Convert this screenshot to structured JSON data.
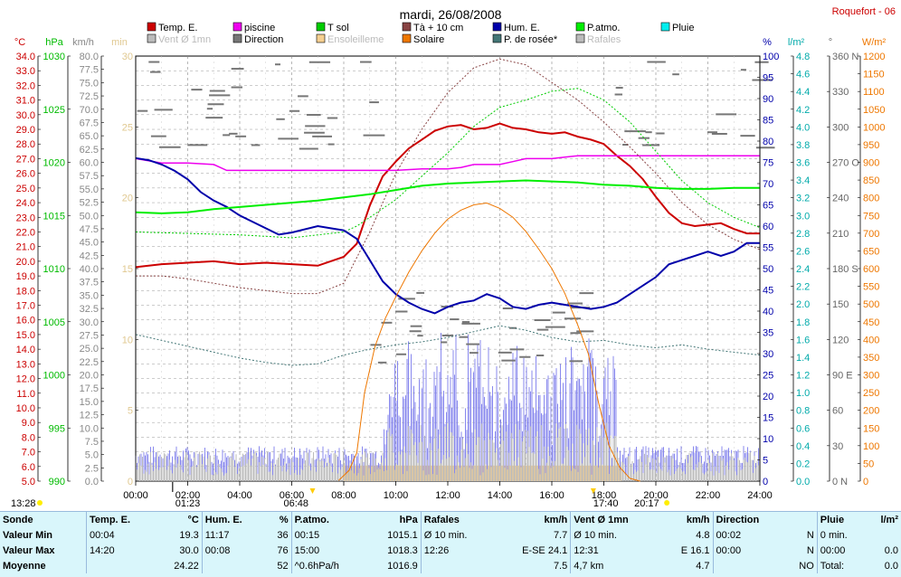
{
  "header": {
    "title": "mardi, 26/08/2008",
    "site": "Roquefort - 06"
  },
  "chart_data": {
    "type": "line",
    "x_range": [
      "00:00",
      "24:00"
    ],
    "x_ticks": [
      "00:00",
      "02:00",
      "04:00",
      "06:00",
      "08:00",
      "10:00",
      "12:00",
      "14:00",
      "16:00",
      "18:00",
      "20:00",
      "22:00",
      "24:00"
    ],
    "grid": true,
    "axes": [
      {
        "id": "temp",
        "unit": "°C",
        "color": "#cc0000",
        "min": 5,
        "max": 34,
        "step": 1,
        "decimals": 1
      },
      {
        "id": "press",
        "unit": "hPa",
        "color": "#00bb00",
        "min": 990,
        "max": 1030,
        "step": 5,
        "decimals": 0
      },
      {
        "id": "wind",
        "unit": "km/h",
        "color": "#888888",
        "min": 0,
        "max": 80,
        "step": 2.5,
        "decimals": 1
      },
      {
        "id": "min",
        "unit": "min",
        "color": "#e0c890",
        "min": 0,
        "max": 30,
        "step": 5,
        "decimals": 0
      },
      {
        "id": "hum",
        "unit": "%",
        "color": "#0000aa",
        "min": 0,
        "max": 100,
        "step": 5,
        "decimals": 0
      },
      {
        "id": "rain",
        "unit": "l/m²",
        "color": "#00aaaa",
        "min": 0,
        "max": 4.8,
        "step": 0.2,
        "decimals": 1
      },
      {
        "id": "dir",
        "unit": "°",
        "color": "#666666",
        "min": 0,
        "max": 360,
        "step": 30,
        "decimals": 0
      },
      {
        "id": "solar",
        "unit": "W/m²",
        "color": "#ee7700",
        "min": 0,
        "max": 1200,
        "step": 50,
        "decimals": 0
      }
    ],
    "dir_labels": {
      "0": "N",
      "90": "E",
      "180": "S",
      "270": "O",
      "360": "N"
    },
    "legend": [
      {
        "label": "Temp. E.",
        "color": "#cc0000"
      },
      {
        "label": "piscine",
        "color": "#ee00ee"
      },
      {
        "label": "T sol",
        "color": "#00cc00"
      },
      {
        "label": "Tà + 10 cm",
        "color": "#884444"
      },
      {
        "label": "Hum. E.",
        "color": "#0000aa"
      },
      {
        "label": "P.atmo.",
        "color": "#00ee00"
      },
      {
        "label": "Pluie",
        "color": "#00eeee"
      },
      {
        "label": "Vent Ø 1mn",
        "color": "#bbbbbb",
        "muted": true
      },
      {
        "label": "Direction",
        "color": "#777777"
      },
      {
        "label": "Ensoleilleme",
        "color": "#f5cf90",
        "muted": true
      },
      {
        "label": "Solaire",
        "color": "#ee7700"
      },
      {
        "label": "P. de rosée*",
        "color": "#447777"
      },
      {
        "label": "Rafales",
        "color": "#bbbbbb",
        "muted": true
      }
    ],
    "series": [
      {
        "name": "Temp. E.",
        "axis": "temp",
        "color": "#cc0000",
        "width": 2,
        "points": [
          [
            0,
            19.6
          ],
          [
            1,
            19.8
          ],
          [
            2,
            19.9
          ],
          [
            3,
            20.0
          ],
          [
            4,
            19.8
          ],
          [
            5,
            19.9
          ],
          [
            6,
            19.8
          ],
          [
            7,
            19.7
          ],
          [
            8,
            20.3
          ],
          [
            8.5,
            21.2
          ],
          [
            9,
            23.8
          ],
          [
            9.5,
            25.8
          ],
          [
            10,
            26.8
          ],
          [
            10.5,
            27.7
          ],
          [
            11,
            28.3
          ],
          [
            11.5,
            28.9
          ],
          [
            12,
            29.2
          ],
          [
            12.5,
            29.3
          ],
          [
            13,
            29.0
          ],
          [
            13.5,
            29.1
          ],
          [
            14,
            29.4
          ],
          [
            14.5,
            29.1
          ],
          [
            15,
            29.0
          ],
          [
            15.5,
            28.8
          ],
          [
            16,
            28.7
          ],
          [
            16.5,
            28.8
          ],
          [
            17,
            28.5
          ],
          [
            17.5,
            28.3
          ],
          [
            18,
            28.0
          ],
          [
            18.5,
            27.2
          ],
          [
            19,
            26.5
          ],
          [
            19.5,
            25.6
          ],
          [
            20,
            24.4
          ],
          [
            20.5,
            23.3
          ],
          [
            21,
            22.6
          ],
          [
            21.5,
            22.4
          ],
          [
            22,
            22.5
          ],
          [
            22.5,
            22.6
          ],
          [
            23,
            22.2
          ],
          [
            23.5,
            21.9
          ],
          [
            24,
            21.9
          ]
        ]
      },
      {
        "name": "piscine",
        "axis": "temp",
        "color": "#ee00ee",
        "width": 1.5,
        "points": [
          [
            0,
            27.0
          ],
          [
            1,
            26.7
          ],
          [
            2,
            26.7
          ],
          [
            3,
            26.6
          ],
          [
            3.5,
            26.2
          ],
          [
            5,
            26.2
          ],
          [
            7,
            26.2
          ],
          [
            8,
            26.2
          ],
          [
            9,
            26.2
          ],
          [
            10,
            26.2
          ],
          [
            11,
            26.3
          ],
          [
            12,
            26.3
          ],
          [
            12.5,
            26.4
          ],
          [
            13,
            26.6
          ],
          [
            14,
            26.6
          ],
          [
            14.5,
            26.8
          ],
          [
            15,
            27.0
          ],
          [
            16,
            27.0
          ],
          [
            16.5,
            27.1
          ],
          [
            17,
            27.2
          ],
          [
            18,
            27.2
          ],
          [
            20,
            27.2
          ],
          [
            22,
            27.2
          ],
          [
            24,
            27.2
          ]
        ]
      },
      {
        "name": "T sol",
        "axis": "temp",
        "color": "#00cc00",
        "width": 1,
        "dash": "2,2",
        "points": [
          [
            0,
            22.0
          ],
          [
            2,
            21.9
          ],
          [
            4,
            21.8
          ],
          [
            5,
            21.7
          ],
          [
            6,
            21.6
          ],
          [
            7,
            21.8
          ],
          [
            8,
            22.0
          ],
          [
            8.5,
            22.4
          ],
          [
            9,
            23.0
          ],
          [
            10,
            24.2
          ],
          [
            11,
            25.8
          ],
          [
            12,
            27.4
          ],
          [
            13,
            29.2
          ],
          [
            14,
            30.5
          ],
          [
            15,
            31.0
          ],
          [
            16,
            31.6
          ],
          [
            17,
            31.8
          ],
          [
            18,
            31.0
          ],
          [
            19,
            29.5
          ],
          [
            20,
            27.5
          ],
          [
            21,
            25.5
          ],
          [
            22,
            24.0
          ],
          [
            23,
            23.0
          ],
          [
            24,
            22.3
          ]
        ]
      },
      {
        "name": "Tà + 10 cm",
        "axis": "temp",
        "color": "#884444",
        "width": 1,
        "dash": "2,2",
        "points": [
          [
            0,
            19.0
          ],
          [
            1,
            19.0
          ],
          [
            2,
            18.8
          ],
          [
            3,
            18.5
          ],
          [
            4,
            18.2
          ],
          [
            5,
            18.0
          ],
          [
            6,
            17.8
          ],
          [
            7,
            17.8
          ],
          [
            8,
            18.5
          ],
          [
            9,
            22.0
          ],
          [
            10,
            26.0
          ],
          [
            11,
            29.0
          ],
          [
            12,
            31.5
          ],
          [
            13,
            33.2
          ],
          [
            14,
            33.8
          ],
          [
            15,
            33.4
          ],
          [
            16,
            32.2
          ],
          [
            17,
            31.0
          ],
          [
            18,
            29.5
          ],
          [
            19,
            27.8
          ],
          [
            20,
            26.0
          ],
          [
            21,
            24.0
          ],
          [
            22,
            22.5
          ],
          [
            23,
            21.5
          ],
          [
            24,
            20.8
          ]
        ]
      },
      {
        "name": "Hum. E.",
        "axis": "hum",
        "color": "#0000aa",
        "width": 2,
        "points": [
          [
            0,
            76
          ],
          [
            0.5,
            75.5
          ],
          [
            1,
            74.5
          ],
          [
            1.5,
            73
          ],
          [
            2,
            71
          ],
          [
            2.5,
            68
          ],
          [
            3,
            66
          ],
          [
            3.5,
            64.5
          ],
          [
            4,
            62.5
          ],
          [
            5,
            59.5
          ],
          [
            5.5,
            58
          ],
          [
            6,
            58.5
          ],
          [
            7,
            60
          ],
          [
            7.5,
            59.5
          ],
          [
            8,
            59
          ],
          [
            8.5,
            57
          ],
          [
            9,
            52
          ],
          [
            9.5,
            47
          ],
          [
            10,
            44
          ],
          [
            10.5,
            42
          ],
          [
            11,
            40.5
          ],
          [
            11.5,
            39.5
          ],
          [
            12,
            41
          ],
          [
            12.5,
            42
          ],
          [
            13,
            42.5
          ],
          [
            13.5,
            44
          ],
          [
            14,
            43
          ],
          [
            14.5,
            41
          ],
          [
            15,
            40.5
          ],
          [
            15.5,
            41.5
          ],
          [
            16,
            42
          ],
          [
            16.5,
            41.5
          ],
          [
            17,
            41
          ],
          [
            17.5,
            40.5
          ],
          [
            18,
            41
          ],
          [
            18.5,
            42
          ],
          [
            19,
            44
          ],
          [
            19.5,
            46
          ],
          [
            20,
            48
          ],
          [
            20.5,
            51
          ],
          [
            21,
            52
          ],
          [
            21.5,
            53
          ],
          [
            22,
            54
          ],
          [
            22.5,
            53
          ],
          [
            23,
            54
          ],
          [
            23.5,
            56
          ],
          [
            24,
            56
          ]
        ]
      },
      {
        "name": "P.atmo.",
        "axis": "press",
        "color": "#00ee00",
        "width": 2,
        "points": [
          [
            0,
            1015.3
          ],
          [
            1,
            1015.2
          ],
          [
            2,
            1015.3
          ],
          [
            3,
            1015.6
          ],
          [
            4,
            1015.8
          ],
          [
            5,
            1016.0
          ],
          [
            6,
            1016.2
          ],
          [
            7,
            1016.4
          ],
          [
            8,
            1016.7
          ],
          [
            9,
            1017.0
          ],
          [
            10,
            1017.4
          ],
          [
            11,
            1017.8
          ],
          [
            12,
            1018.0
          ],
          [
            13,
            1018.1
          ],
          [
            14,
            1018.2
          ],
          [
            15,
            1018.3
          ],
          [
            16,
            1018.2
          ],
          [
            17,
            1018.1
          ],
          [
            18,
            1017.9
          ],
          [
            19,
            1017.8
          ],
          [
            20,
            1017.6
          ],
          [
            21,
            1017.5
          ],
          [
            22,
            1017.5
          ],
          [
            23,
            1017.6
          ],
          [
            24,
            1017.6
          ]
        ]
      },
      {
        "name": "P. de rosée*",
        "axis": "temp",
        "color": "#447777",
        "width": 1,
        "dash": "2,2",
        "points": [
          [
            0,
            15.0
          ],
          [
            1,
            14.6
          ],
          [
            2,
            14.2
          ],
          [
            3,
            13.8
          ],
          [
            4,
            13.4
          ],
          [
            5,
            13.1
          ],
          [
            6,
            12.9
          ],
          [
            7,
            13.0
          ],
          [
            8,
            13.6
          ],
          [
            9,
            14.0
          ],
          [
            10,
            14.3
          ],
          [
            11,
            14.5
          ],
          [
            12,
            14.8
          ],
          [
            13,
            15.2
          ],
          [
            14,
            15.6
          ],
          [
            15,
            15.3
          ],
          [
            16,
            14.8
          ],
          [
            17,
            14.5
          ],
          [
            18,
            14.6
          ],
          [
            19,
            14.3
          ],
          [
            20,
            14.1
          ],
          [
            21,
            14.3
          ],
          [
            22,
            14.0
          ],
          [
            23,
            13.8
          ],
          [
            24,
            13.6
          ]
        ]
      },
      {
        "name": "Solaire",
        "axis": "solar",
        "color": "#ee7700",
        "width": 1,
        "points": [
          [
            7.8,
            2
          ],
          [
            8.2,
            30
          ],
          [
            8.5,
            80
          ],
          [
            8.8,
            250
          ],
          [
            9.2,
            380
          ],
          [
            9.6,
            460
          ],
          [
            10,
            520
          ],
          [
            10.5,
            590
          ],
          [
            11,
            650
          ],
          [
            11.5,
            700
          ],
          [
            12,
            740
          ],
          [
            12.5,
            765
          ],
          [
            13,
            780
          ],
          [
            13.5,
            785
          ],
          [
            14,
            770
          ],
          [
            14.5,
            745
          ],
          [
            15,
            705
          ],
          [
            15.5,
            655
          ],
          [
            16,
            600
          ],
          [
            16.5,
            530
          ],
          [
            17,
            440
          ],
          [
            17.4,
            360
          ],
          [
            17.8,
            220
          ],
          [
            18.2,
            100
          ],
          [
            18.6,
            40
          ],
          [
            19,
            8
          ],
          [
            19.4,
            0
          ]
        ]
      }
    ],
    "wind_mean_kmh": 3.5,
    "gusts_kmh": 7.5,
    "sunshine_start": "08:00",
    "sunshine_end": "18:40",
    "direction_deg": 320,
    "bottom_labels": {
      "left": "13:28",
      "a": "01:23",
      "b": "06:48",
      "c": "17:40",
      "d": "20:17"
    }
  },
  "stats": {
    "rows": [
      [
        "Sonde",
        "Temp. E.",
        "°C",
        "Hum. E.",
        "%",
        "P.atmo.",
        "hPa",
        "Rafales",
        "km/h",
        "Vent Ø 1mn",
        "km/h",
        "Direction",
        "",
        "Pluie",
        "l/m²"
      ],
      [
        "Valeur Min",
        "00:04",
        "19.3",
        "11:17",
        "36",
        "00:15",
        "1015.1",
        "Ø 10 min.",
        "7.7",
        "Ø 10 min.",
        "4.8",
        "00:02",
        "N",
        "0 min.",
        ""
      ],
      [
        "Valeur Max",
        "14:20",
        "30.0",
        "00:08",
        "76",
        "15:00",
        "1018.3",
        "12:26",
        "E-SE 24.1",
        "12:31",
        "E 16.1",
        "00:00",
        "N",
        "00:00",
        "0.0"
      ],
      [
        "Moyenne",
        "",
        "24.22",
        "",
        "52",
        "^0.6hPa/h",
        "1016.9",
        "",
        "7.5",
        "4,7 km",
        "4.7",
        "",
        "NO",
        "Total:",
        "0.0"
      ]
    ]
  }
}
